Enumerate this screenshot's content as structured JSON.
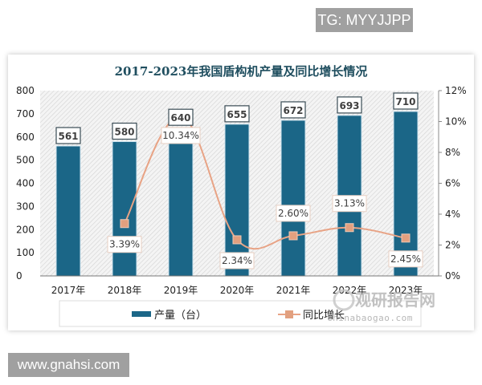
{
  "badges": {
    "top_right": "TG: MYYJJPP",
    "bottom_left": "www.gnahsi.com"
  },
  "watermark": {
    "cn": "观研报告网",
    "url": "chinabaogao.com"
  },
  "colors": {
    "bar": "#1b6687",
    "line": "#e8a385",
    "marker": "#e2a07f",
    "title": "#1f4e5f"
  },
  "chart_data": {
    "type": "bar+line",
    "title": "2017-2023年我国盾构机产量及同比增长情况",
    "categories": [
      "2017年",
      "2018年",
      "2019年",
      "2020年",
      "2021年",
      "2022年",
      "2023年"
    ],
    "series": [
      {
        "name": "产量（台）",
        "type": "bar",
        "axis": "left",
        "values": [
          561,
          580,
          640,
          655,
          672,
          693,
          710
        ],
        "labels": [
          "561",
          "580",
          "640",
          "655",
          "672",
          "693",
          "710"
        ]
      },
      {
        "name": "同比增长",
        "type": "line",
        "axis": "right",
        "values": [
          null,
          3.39,
          10.34,
          2.34,
          2.6,
          3.13,
          2.45
        ],
        "labels": [
          "",
          "3.39%",
          "10.34%",
          "2.34%",
          "2.60%",
          "3.13%",
          "2.45%"
        ]
      }
    ],
    "left_axis": {
      "ylim": [
        0,
        800
      ],
      "ticks": [
        "0",
        "100",
        "200",
        "300",
        "400",
        "500",
        "600",
        "700",
        "800"
      ]
    },
    "right_axis": {
      "ylim": [
        0,
        12
      ],
      "ticks": [
        "0%",
        "2%",
        "4%",
        "6%",
        "8%",
        "10%",
        "12%"
      ]
    },
    "legend": {
      "position": "bottom",
      "items": [
        "产量（台）",
        "同比增长"
      ]
    },
    "grid": false,
    "background": "diagonal-hatch"
  }
}
